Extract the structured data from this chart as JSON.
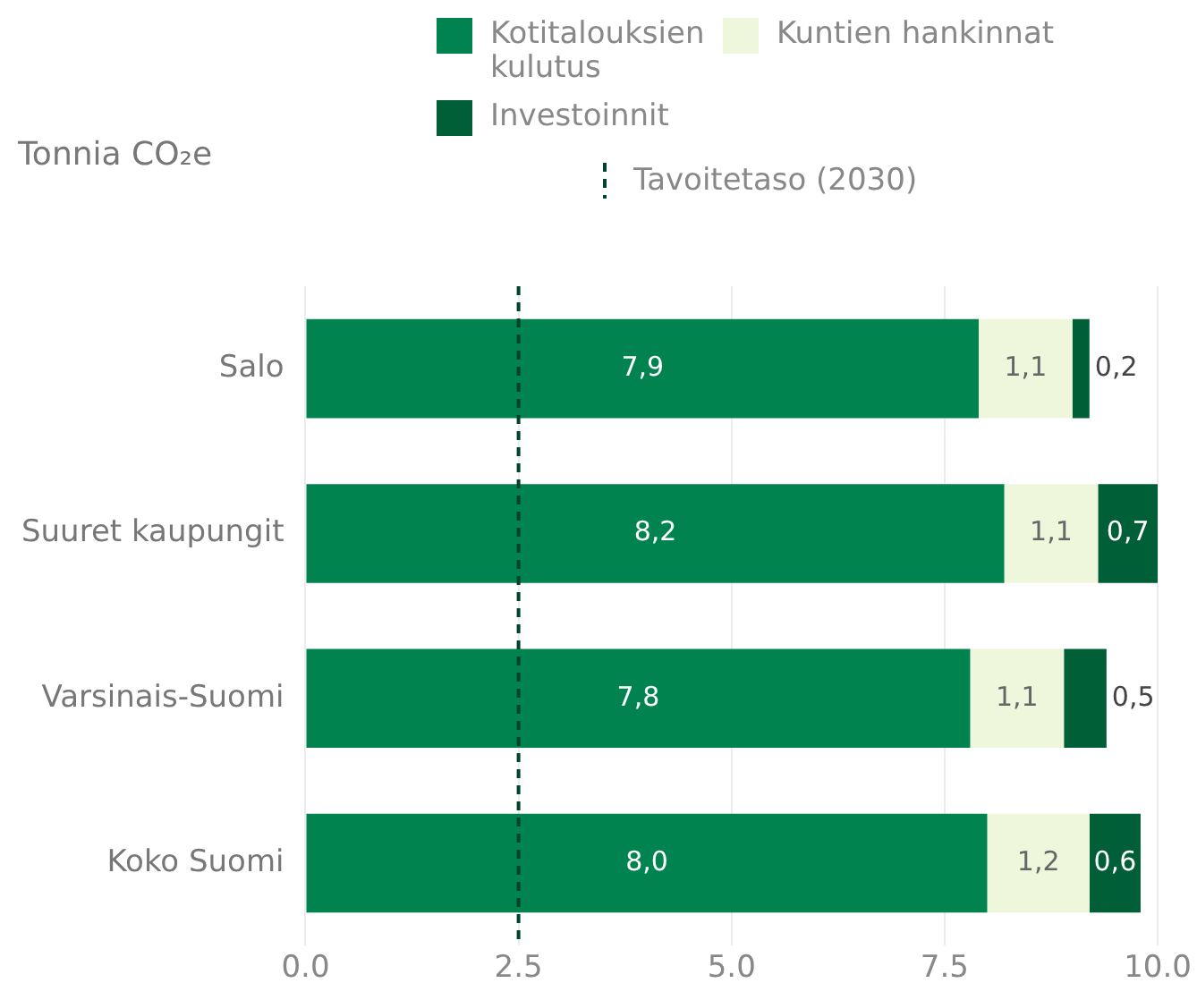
{
  "chart_data": {
    "type": "bar",
    "orientation": "horizontal",
    "stacked": true,
    "ylabel": "Tonnia CO₂e",
    "categories": [
      "Salo",
      "Suuret kaupungit",
      "Varsinais-Suomi",
      "Koko Suomi"
    ],
    "series": [
      {
        "name": "Kotitalouksien kulutus",
        "color": "#00834f",
        "values": [
          7.9,
          8.2,
          7.8,
          8.0
        ],
        "value_labels": [
          "7,9",
          "8,2",
          "7,8",
          "8,0"
        ]
      },
      {
        "name": "Kuntien hankinnat",
        "color": "#eef7dc",
        "values": [
          1.1,
          1.1,
          1.1,
          1.2
        ],
        "value_labels": [
          "1,1",
          "1,1",
          "1,1",
          "1,2"
        ]
      },
      {
        "name": "Investoinnit",
        "color": "#005f36",
        "values": [
          0.2,
          0.7,
          0.5,
          0.6
        ],
        "value_labels": [
          "0,2",
          "0,7",
          "0,5",
          "0,6"
        ]
      }
    ],
    "xlim": [
      0,
      10
    ],
    "xticks": [
      {
        "value": 0,
        "label": "0.0"
      },
      {
        "value": 2.5,
        "label": "2.5"
      },
      {
        "value": 5,
        "label": "5.0"
      },
      {
        "value": 7.5,
        "label": "7.5"
      },
      {
        "value": 10,
        "label": "10.0"
      }
    ],
    "grid": "x",
    "legend": "top",
    "ref_lines": [
      {
        "axis": "x",
        "value": 2.5,
        "label": "Tavoitetaso (2030)",
        "color": "#00422a",
        "line_style": "dashed"
      }
    ]
  }
}
